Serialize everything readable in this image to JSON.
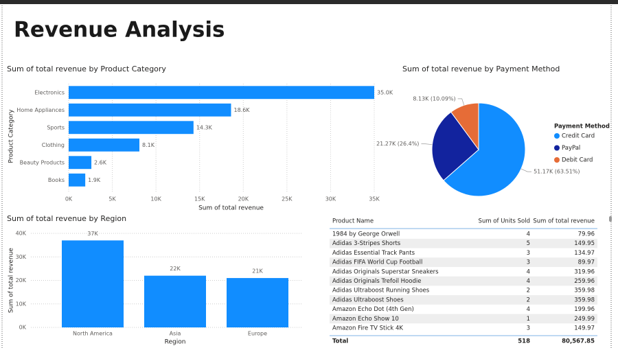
{
  "title": "Revenue Analysis",
  "chart_data": [
    {
      "type": "bar",
      "horizontal": true,
      "title": "Sum of total revenue by Product Category",
      "categories": [
        "Electronics",
        "Home Appliances",
        "Sports",
        "Clothing",
        "Beauty Products",
        "Books"
      ],
      "values": [
        35000,
        18600,
        14300,
        8100,
        2600,
        1900
      ],
      "value_labels": [
        "35.0K",
        "18.6K",
        "14.3K",
        "8.1K",
        "2.6K",
        "1.9K"
      ],
      "color": "#118DFF",
      "xlim": [
        0,
        35000
      ],
      "xticks": [
        {
          "value": 0,
          "label": "0K"
        },
        {
          "value": 5000,
          "label": "5K"
        },
        {
          "value": 10000,
          "label": "10K"
        },
        {
          "value": 15000,
          "label": "15K"
        },
        {
          "value": 20000,
          "label": "20K"
        },
        {
          "value": 25000,
          "label": "25K"
        },
        {
          "value": 30000,
          "label": "30K"
        },
        {
          "value": 35000,
          "label": "35K"
        }
      ],
      "grid": true,
      "xlabel": "Sum of total revenue",
      "ylabel": "Product Category"
    },
    {
      "type": "pie",
      "title": "Sum of total revenue by Payment Method",
      "categories": [
        "Credit Card",
        "PayPal",
        "Debit Card"
      ],
      "values": [
        51170,
        21270,
        8130
      ],
      "value_labels": [
        "51.17K (63.51%)",
        "21.27K (26.4%)",
        "8.13K (10.09%)"
      ],
      "colors": [
        "#118DFF",
        "#12239E",
        "#E66C37"
      ],
      "legend_title": "Payment Method",
      "legend": "right"
    },
    {
      "type": "bar",
      "horizontal": false,
      "title": "Sum of total revenue by Region",
      "categories": [
        "North America",
        "Asia",
        "Europe"
      ],
      "values": [
        37000,
        22000,
        21000
      ],
      "value_labels": [
        "37K",
        "22K",
        "21K"
      ],
      "color": "#118DFF",
      "ylim": [
        0,
        40000
      ],
      "yticks": [
        {
          "value": 0,
          "label": "0K"
        },
        {
          "value": 10000,
          "label": "10K"
        },
        {
          "value": 20000,
          "label": "20K"
        },
        {
          "value": 30000,
          "label": "30K"
        },
        {
          "value": 40000,
          "label": "40K"
        }
      ],
      "grid": true,
      "xlabel": "Region",
      "ylabel": "Sum of total revenue"
    }
  ],
  "table": {
    "columns": [
      "Product Name",
      "Sum of Units Sold",
      "Sum of total revenue"
    ],
    "rows": [
      [
        "1984 by George Orwell",
        "4",
        "79.96"
      ],
      [
        "Adidas 3-Stripes Shorts",
        "5",
        "149.95"
      ],
      [
        "Adidas Essential Track Pants",
        "3",
        "134.97"
      ],
      [
        "Adidas FIFA World Cup Football",
        "3",
        "89.97"
      ],
      [
        "Adidas Originals Superstar Sneakers",
        "4",
        "319.96"
      ],
      [
        "Adidas Originals Trefoil Hoodie",
        "4",
        "259.96"
      ],
      [
        "Adidas Ultraboost Running Shoes",
        "2",
        "359.98"
      ],
      [
        "Adidas Ultraboost Shoes",
        "2",
        "359.98"
      ],
      [
        "Amazon Echo Dot (4th Gen)",
        "4",
        "199.96"
      ],
      [
        "Amazon Echo Show 10",
        "1",
        "249.99"
      ],
      [
        "Amazon Fire TV Stick 4K",
        "3",
        "149.97"
      ]
    ],
    "total": [
      "Total",
      "518",
      "80,567.85"
    ]
  }
}
